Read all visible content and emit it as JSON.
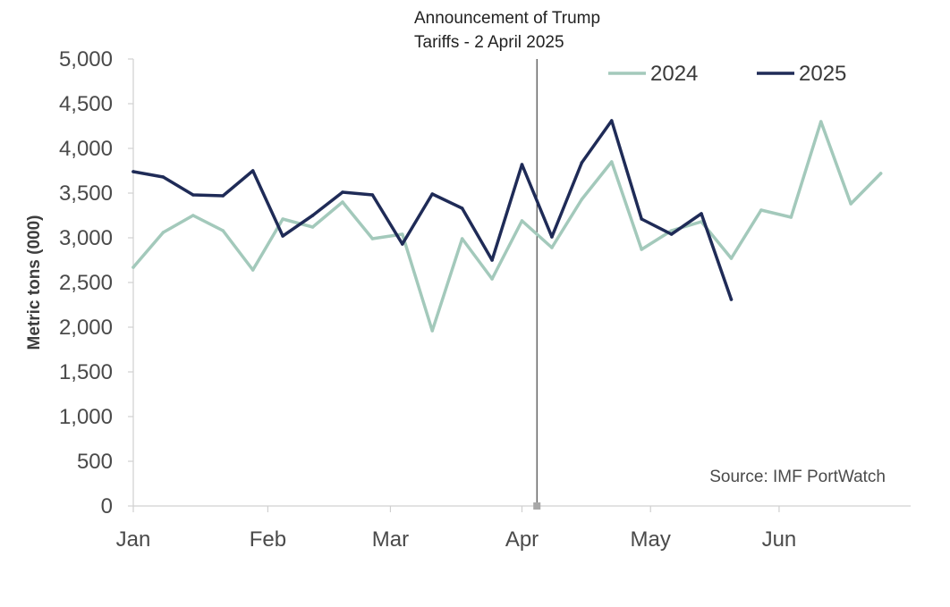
{
  "chart_data": {
    "type": "line",
    "title": "",
    "xlabel": "",
    "ylabel": "Metric tons (000)",
    "ylim": [
      0,
      5000
    ],
    "yticks": [
      0,
      500,
      1000,
      1500,
      2000,
      2500,
      3000,
      3500,
      4000,
      4500,
      5000
    ],
    "ytick_labels": [
      "0",
      "500",
      "1,000",
      "1,500",
      "2,000",
      "2,500",
      "3,000",
      "3,500",
      "4,000",
      "4,500",
      "5,000"
    ],
    "x_unit": "week",
    "xlim": [
      0,
      26
    ],
    "month_ticks": [
      {
        "label": "Jan",
        "x": 0
      },
      {
        "label": "Feb",
        "x": 4.5
      },
      {
        "label": "Mar",
        "x": 8.6
      },
      {
        "label": "Apr",
        "x": 13
      },
      {
        "label": "May",
        "x": 17.3
      },
      {
        "label": "Jun",
        "x": 21.6
      }
    ],
    "series": [
      {
        "name": "2024",
        "color": "#a3c9bb",
        "values": [
          2670,
          3060,
          3250,
          3080,
          2640,
          3210,
          3120,
          3400,
          2990,
          3040,
          1960,
          2990,
          2540,
          3190,
          2890,
          3430,
          3850,
          2870,
          3080,
          3180,
          2770,
          3310,
          3230,
          4300,
          3380,
          3720
        ]
      },
      {
        "name": "2025",
        "color": "#1f2b57",
        "values": [
          3740,
          3680,
          3480,
          3470,
          3750,
          3020,
          3250,
          3510,
          3480,
          2930,
          3490,
          3330,
          2750,
          3820,
          3010,
          3840,
          4310,
          3210,
          3040,
          3270,
          2310
        ]
      }
    ],
    "annotation": {
      "line1": "Announcement of Trump",
      "line2": "Tariffs - 2 April 2025",
      "x": 13.5
    },
    "legend_position": "top-right",
    "source": "Source: IMF PortWatch"
  }
}
